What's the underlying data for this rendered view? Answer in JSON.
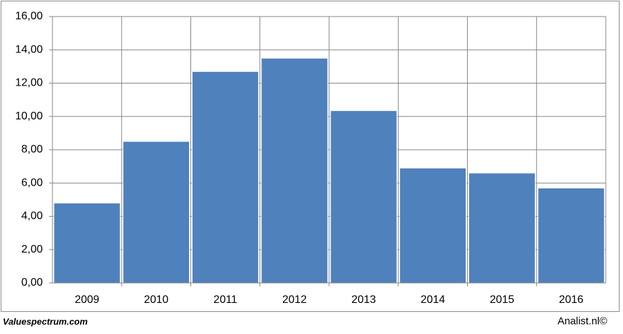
{
  "chart_data": {
    "type": "bar",
    "categories": [
      "2009",
      "2010",
      "2011",
      "2012",
      "2013",
      "2014",
      "2015",
      "2016"
    ],
    "values": [
      4.8,
      8.5,
      12.7,
      13.5,
      10.35,
      6.9,
      6.6,
      5.7
    ],
    "color": "#4f81bd",
    "ylim": [
      0,
      16
    ],
    "yticks": [
      {
        "value": 0,
        "label": "0,00"
      },
      {
        "value": 2,
        "label": "2,00"
      },
      {
        "value": 4,
        "label": "4,00"
      },
      {
        "value": 6,
        "label": "6,00"
      },
      {
        "value": 8,
        "label": "8,00"
      },
      {
        "value": 10,
        "label": "10,00"
      },
      {
        "value": 12,
        "label": "12,00"
      },
      {
        "value": 14,
        "label": "14,00"
      },
      {
        "value": 16,
        "label": "16,00"
      }
    ],
    "grid": true
  },
  "footer": {
    "source": "Valuespectrum.com",
    "credit": "Analist.nl©"
  }
}
